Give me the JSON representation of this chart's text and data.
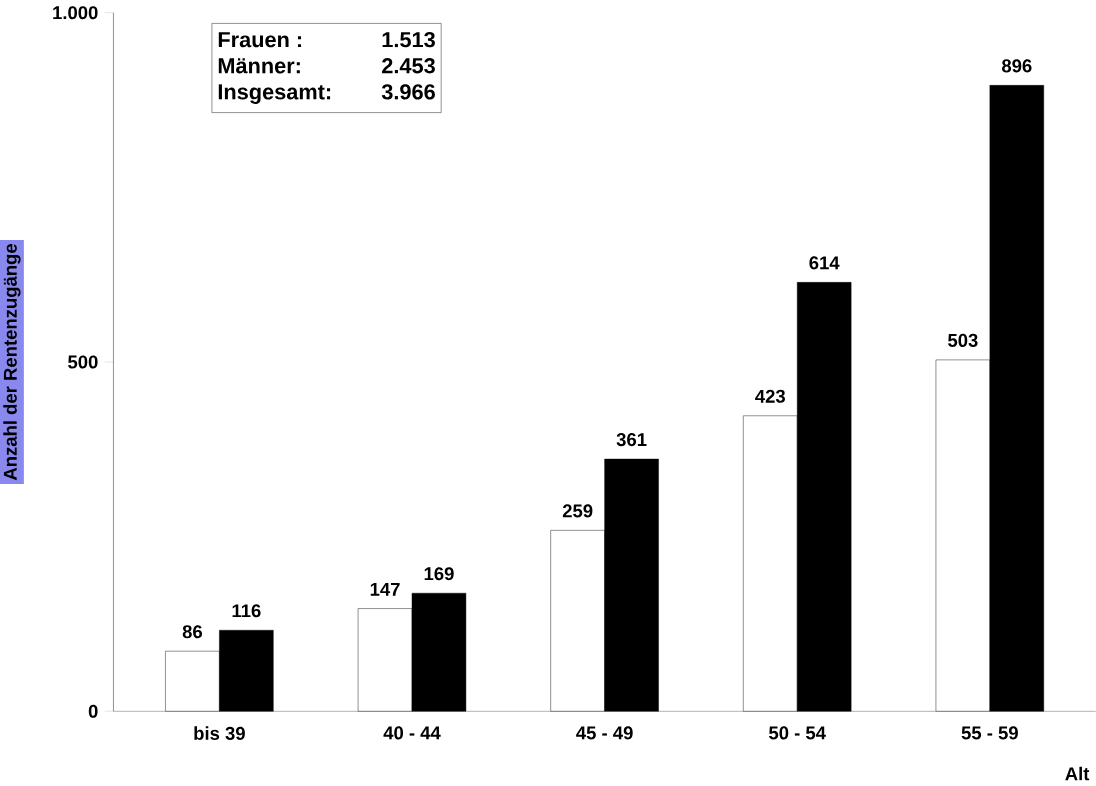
{
  "chart_data": {
    "type": "bar",
    "xlabel": "Alt",
    "ylabel": "Anzahl der Rentenzugänge",
    "categories": [
      "bis 39",
      "40 - 44",
      "45 - 49",
      "50 - 54",
      "55 - 59"
    ],
    "series": [
      {
        "color": "#ffffff",
        "values": [
          86,
          147,
          259,
          423,
          503
        ]
      },
      {
        "color": "#000000",
        "values": [
          116,
          169,
          361,
          614,
          896
        ]
      }
    ],
    "ylim": [
      0,
      1000
    ],
    "yticks": [
      0,
      500,
      {
        "value": 1000,
        "label": "1.000"
      }
    ],
    "data_labels": true,
    "annotations": [
      "Frauen :",
      "1.513",
      "Männer:",
      "2.453",
      "Insgesamt:",
      "3.966"
    ]
  }
}
